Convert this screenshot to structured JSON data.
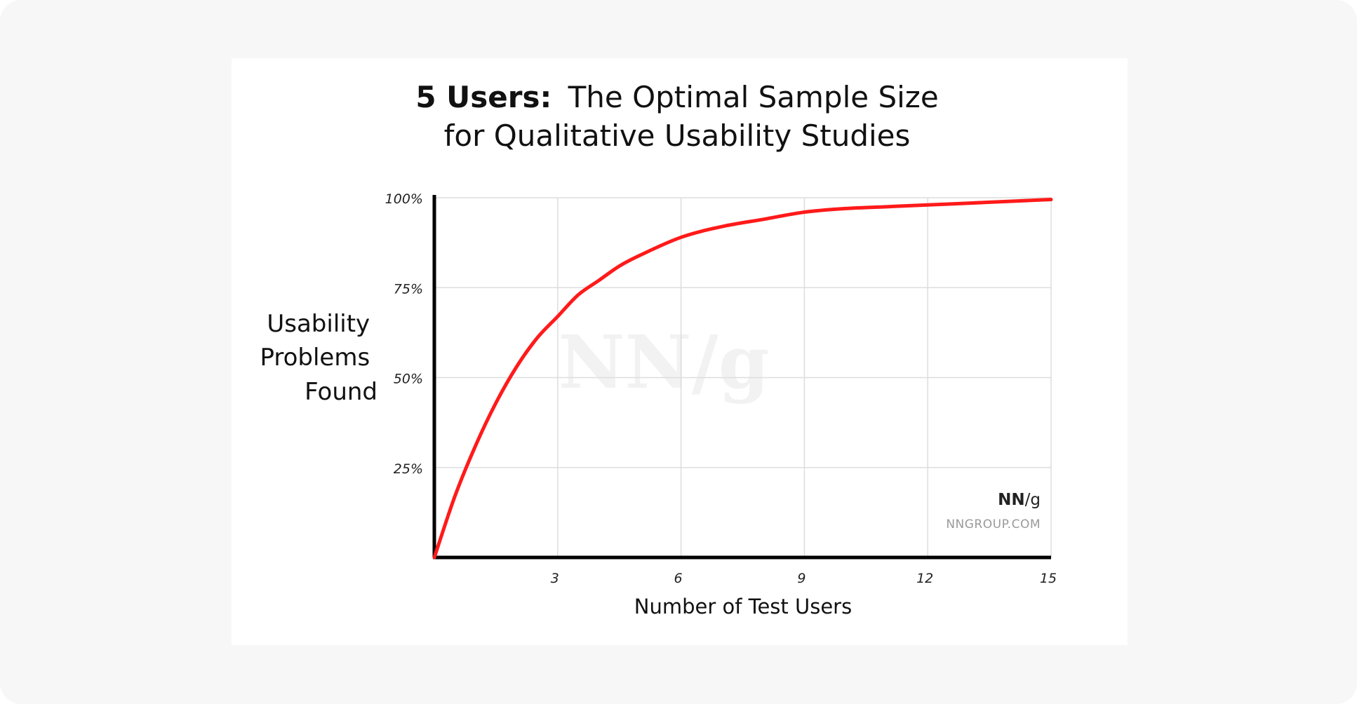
{
  "chart_data": {
    "type": "line",
    "title_bold": "5 Users:",
    "title_rest": "The Optimal Sample Size",
    "title_line2": "for Qualitative Usability Studies",
    "ylabel_lines": [
      "Usability",
      "Problems",
      "Found"
    ],
    "xlabel": "Number of Test Users",
    "xlim": [
      0,
      15
    ],
    "ylim": [
      0,
      100
    ],
    "x_ticks": [
      3,
      6,
      9,
      12,
      15
    ],
    "x_tick_labels": [
      "3",
      "6",
      "9",
      "12",
      "15"
    ],
    "y_ticks": [
      25,
      50,
      75,
      100
    ],
    "y_tick_labels": [
      "25%",
      "50%",
      "75%",
      "100%"
    ],
    "grid": true,
    "series": [
      {
        "color": "#ff1a1a",
        "x": [
          0,
          0.5,
          1,
          1.5,
          2,
          2.5,
          3,
          3.5,
          4,
          4.5,
          5,
          6,
          7,
          8,
          9,
          10,
          11,
          12,
          13,
          14,
          15
        ],
        "y": [
          0,
          17,
          31,
          43,
          53,
          61,
          67,
          73,
          77,
          81,
          84,
          89,
          92,
          94,
          96,
          97,
          97.5,
          98,
          98.5,
          99,
          99.5
        ]
      }
    ],
    "watermark": "NN/g",
    "logo": {
      "bold": "NN",
      "rest": "/g",
      "url": "NNGROUP.COM"
    }
  }
}
